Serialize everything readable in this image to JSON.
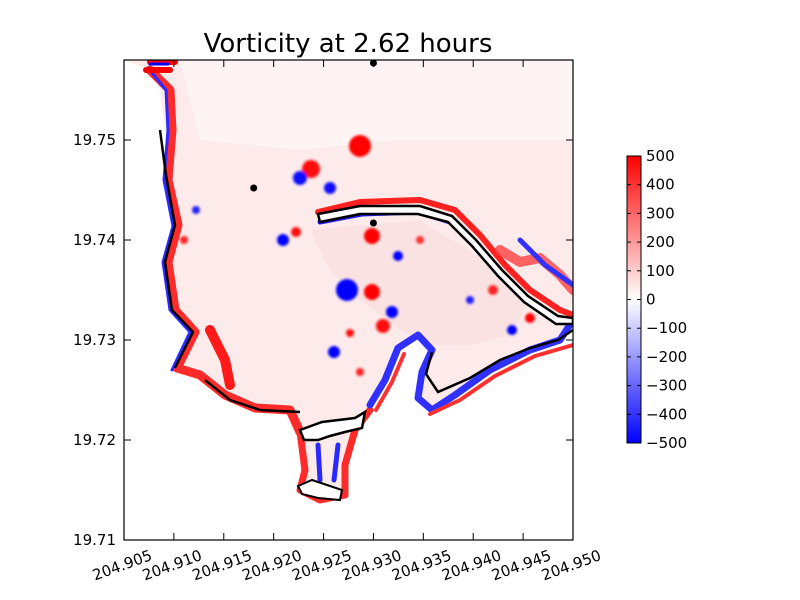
{
  "chart_data": {
    "type": "heatmap",
    "title": "Vorticity at 2.62 hours",
    "xlabel": "",
    "ylabel": "",
    "xlim": [
      204.905,
      204.95
    ],
    "ylim": [
      19.71,
      19.758
    ],
    "x_ticks": [
      "204.905",
      "204.910",
      "204.915",
      "204.920",
      "204.925",
      "204.930",
      "204.935",
      "204.940",
      "204.945",
      "204.950"
    ],
    "x_tick_values": [
      204.905,
      204.91,
      204.915,
      204.92,
      204.925,
      204.93,
      204.935,
      204.94,
      204.945,
      204.95
    ],
    "y_ticks": [
      "19.71",
      "19.72",
      "19.73",
      "19.74",
      "19.75"
    ],
    "y_tick_values": [
      19.71,
      19.72,
      19.73,
      19.74,
      19.75
    ],
    "grid": false,
    "colorbar": {
      "min": -500,
      "max": 500,
      "colormap": "bwr",
      "tick_values": [
        500,
        400,
        300,
        200,
        100,
        0,
        -100,
        -200,
        -300,
        -400,
        -500
      ],
      "ticks": [
        "500",
        "400",
        "300",
        "200",
        "100",
        "0",
        "−100",
        "−200",
        "−300",
        "−400",
        "−500"
      ]
    },
    "markers": [
      {
        "x": 204.93,
        "y": 19.7577
      },
      {
        "x": 204.918,
        "y": 19.7452
      },
      {
        "x": 204.93,
        "y": 19.7417
      }
    ],
    "colors": {
      "positive": "#ff0000",
      "negative": "#0000ff",
      "zero": "#ffffff",
      "land": "#ffffff",
      "shoreline": "#000000"
    }
  }
}
